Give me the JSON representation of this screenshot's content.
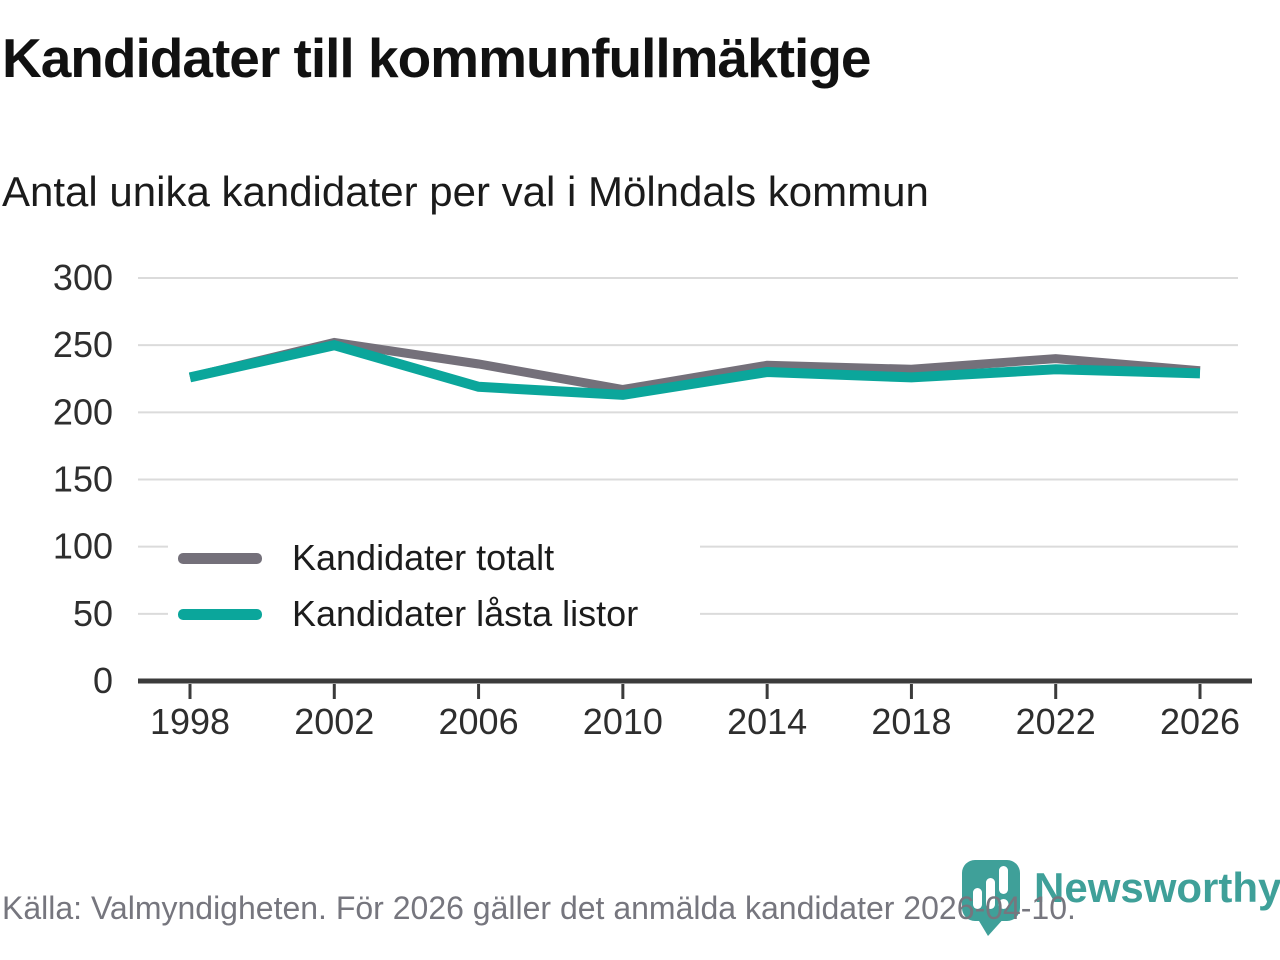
{
  "chart_data": {
    "type": "line",
    "title": "Kandidater till kommunfullmäktige",
    "subtitle": "Antal unika kandidater per val i Mölndals kommun",
    "x": [
      1998,
      2002,
      2006,
      2010,
      2014,
      2018,
      2022,
      2026
    ],
    "series": [
      {
        "name": "Kandidater totalt",
        "color": "#74707A",
        "stroke_width": 9,
        "values": [
          226,
          252,
          236,
          217,
          235,
          232,
          240,
          231
        ]
      },
      {
        "name": "Kandidater låsta listor",
        "color": "#0BA69B",
        "stroke_width": 10,
        "values": [
          226,
          250,
          219,
          213,
          230,
          226,
          232,
          229
        ]
      }
    ],
    "ylim": [
      0,
      300
    ],
    "yticks": [
      0,
      50,
      100,
      150,
      200,
      250,
      300
    ],
    "grid": "horizontal",
    "legend_position": "inside-left-middle",
    "source": "Källa: Valmyndigheten. För 2026 gäller det anmälda kandidater 2026-04-10."
  },
  "footer": {
    "brand": {
      "name": "Newsworthy",
      "color": "#3FA099"
    }
  },
  "colors": {
    "background": "#FFFFFF",
    "grid": "#DBDBDB",
    "axis": "#3B3B3B",
    "tick_label": "#2E2E2E",
    "title": "#111111",
    "subtitle": "#1B1B1B",
    "source_text": "#76767E",
    "logo_teal": "#3FA099",
    "line_gray": "#74707A",
    "line_teal": "#0BA69B"
  }
}
